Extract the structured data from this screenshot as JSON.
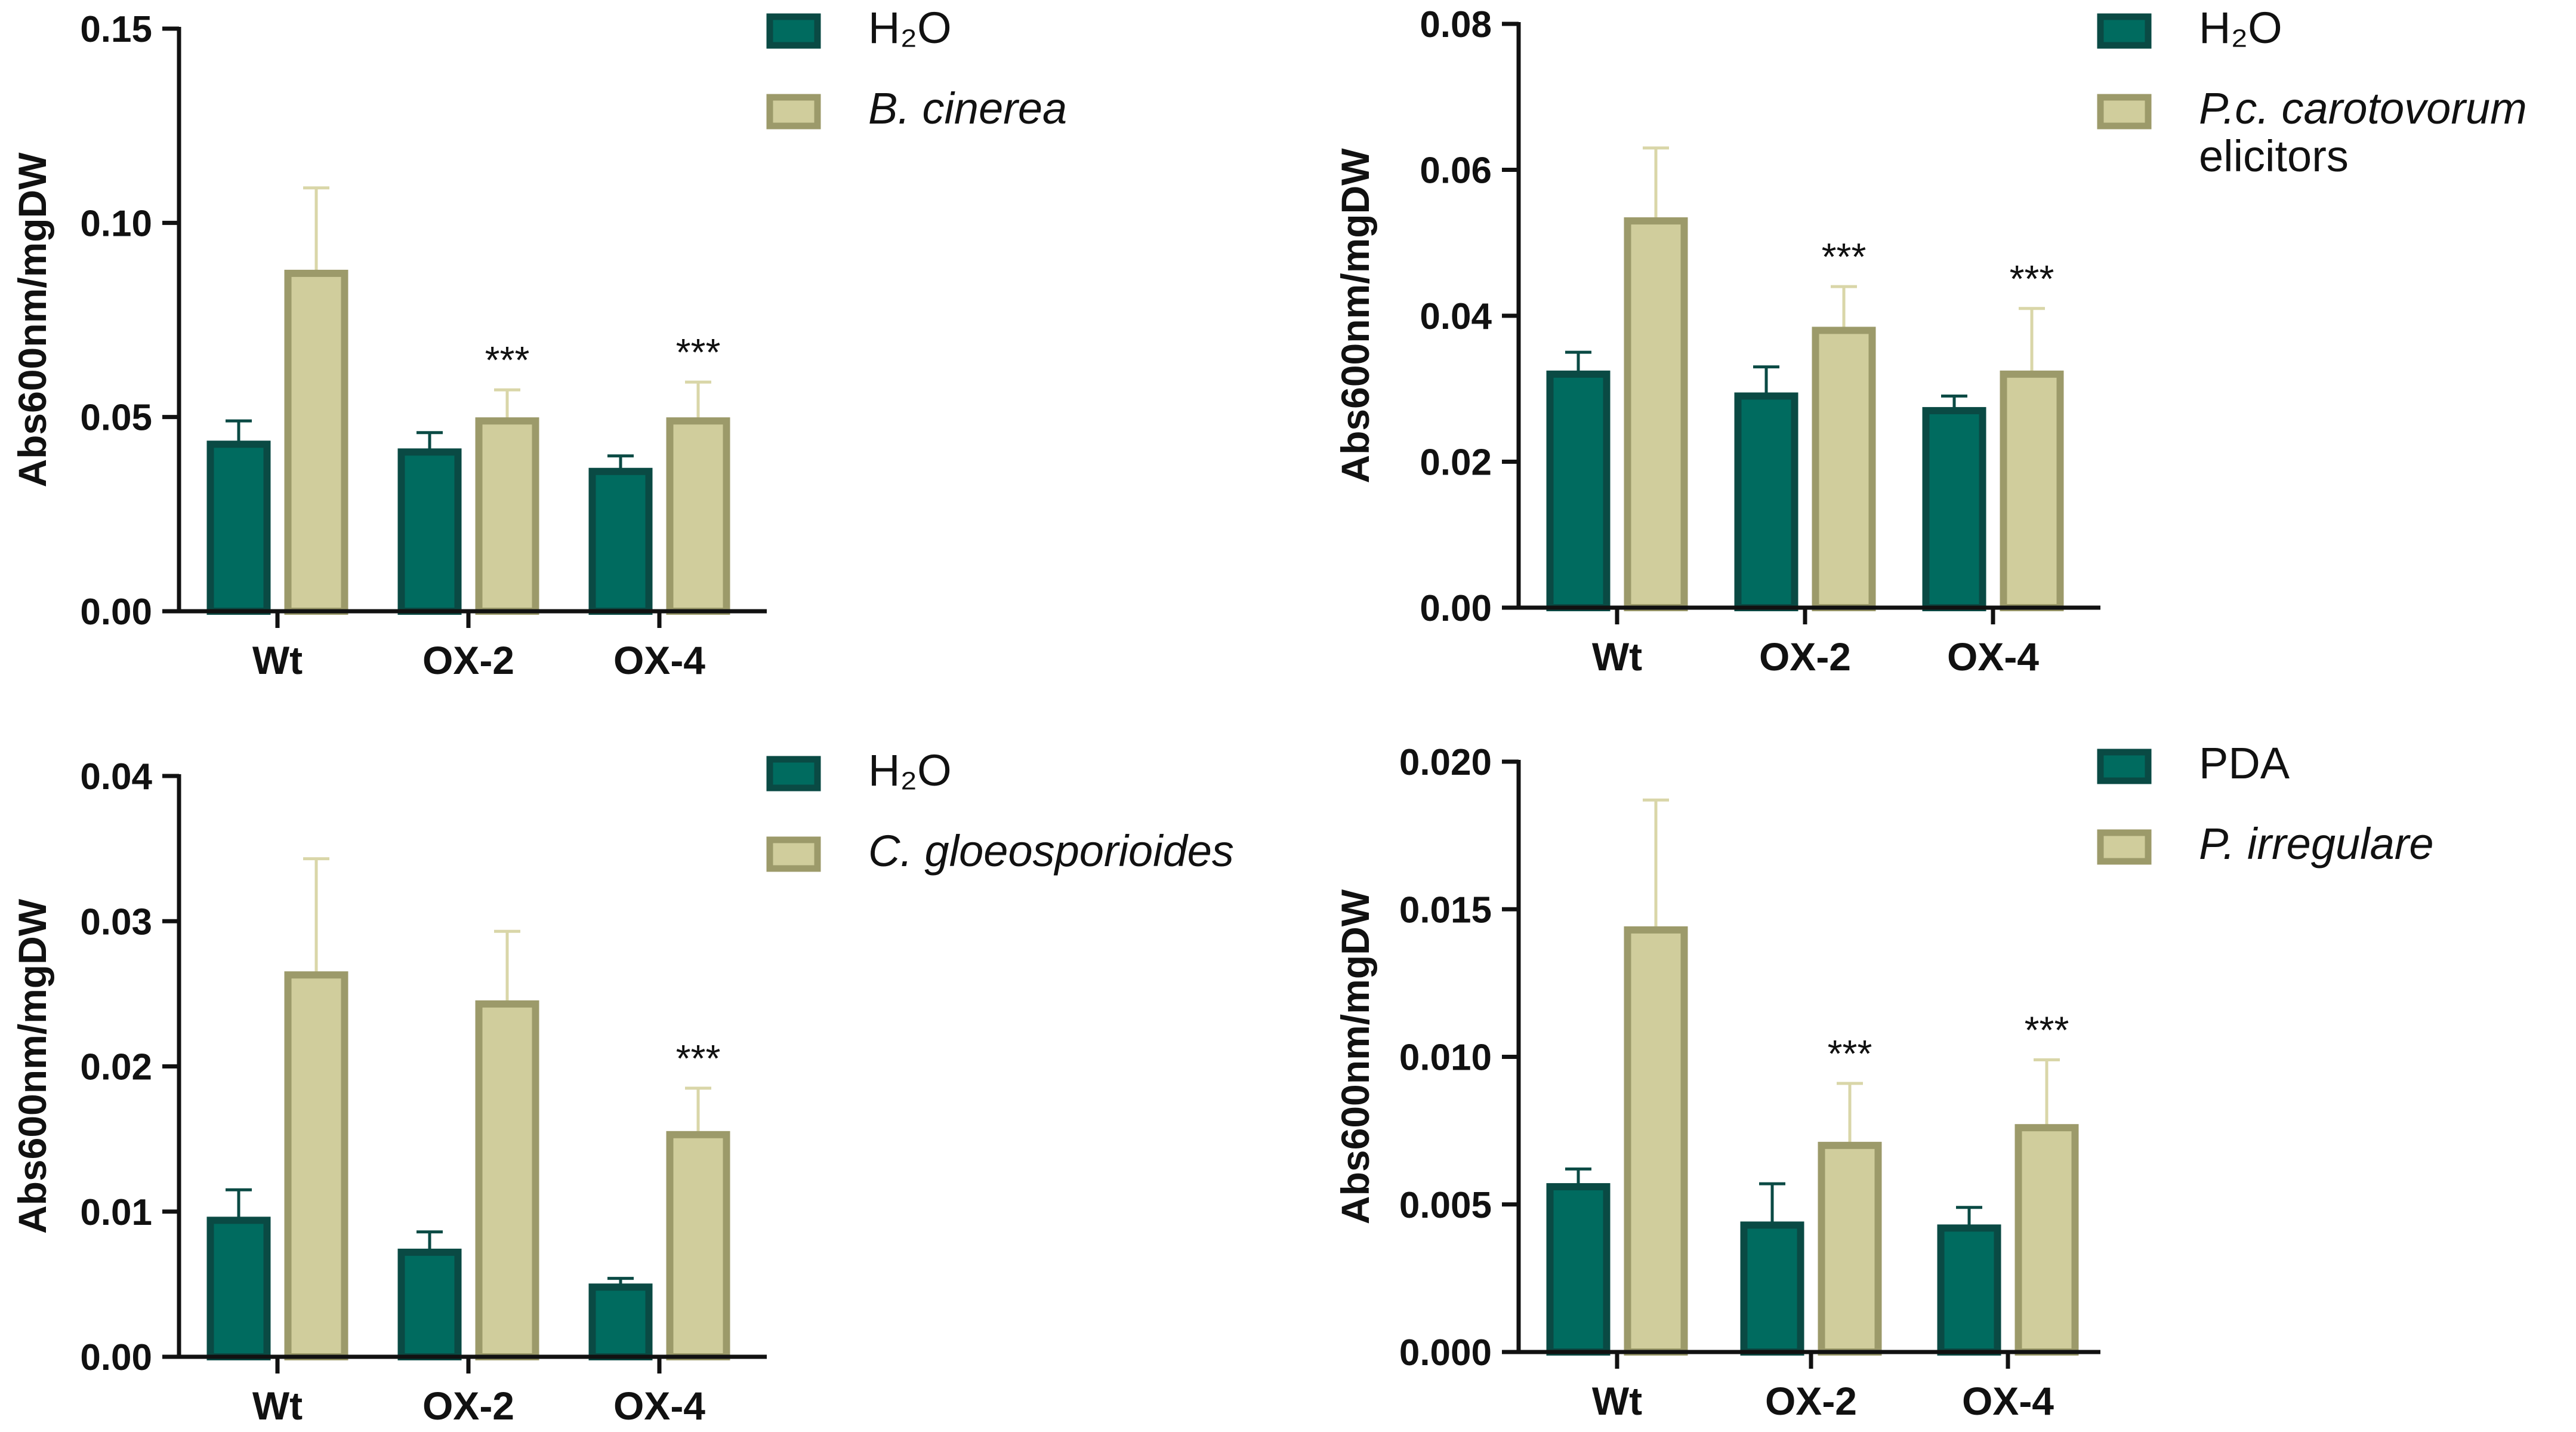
{
  "chart_data": [
    {
      "type": "bar",
      "categories": [
        "Wt",
        "OX-2",
        "OX-4"
      ],
      "ylabel": "Abs600nm/mgDW",
      "ylim": [
        0,
        0.15
      ],
      "yticks": [
        "0.00",
        "0.05",
        "0.10",
        "0.15"
      ],
      "series": [
        {
          "name": "H₂O",
          "italic": false,
          "values": [
            0.043,
            0.041,
            0.036
          ],
          "errors": [
            0.006,
            0.005,
            0.004
          ],
          "color": "#006b5f"
        },
        {
          "name": "B. cinerea",
          "italic": true,
          "values": [
            0.087,
            0.049,
            0.049
          ],
          "errors": [
            0.022,
            0.008,
            0.01
          ],
          "color": "#d0cd9c"
        }
      ],
      "annotations": [
        "",
        "***",
        "***"
      ]
    },
    {
      "type": "bar",
      "categories": [
        "Wt",
        "OX-2",
        "OX-4"
      ],
      "ylabel": "Abs600nm/mgDW",
      "ylim": [
        0,
        0.08
      ],
      "yticks": [
        "0.00",
        "0.02",
        "0.04",
        "0.06",
        "0.08"
      ],
      "series": [
        {
          "name": "H₂O",
          "italic": false,
          "values": [
            0.032,
            0.029,
            0.027
          ],
          "errors": [
            0.003,
            0.004,
            0.002
          ],
          "color": "#006b5f"
        },
        {
          "name": "P.c. carotovorum",
          "name2": "elicitors",
          "italic": true,
          "values": [
            0.053,
            0.038,
            0.032
          ],
          "errors": [
            0.01,
            0.006,
            0.009
          ],
          "color": "#d0cd9c"
        }
      ],
      "annotations": [
        "",
        "***",
        "***"
      ]
    },
    {
      "type": "bar",
      "categories": [
        "Wt",
        "OX-2",
        "OX-4"
      ],
      "ylabel": "Abs600nm/mgDW",
      "ylim": [
        0,
        0.04
      ],
      "yticks": [
        "0.00",
        "0.01",
        "0.02",
        "0.03",
        "0.04"
      ],
      "series": [
        {
          "name": "H₂O",
          "italic": false,
          "values": [
            0.0094,
            0.0072,
            0.0048
          ],
          "errors": [
            0.0021,
            0.0014,
            0.0006
          ],
          "color": "#006b5f"
        },
        {
          "name": "C. gloeosporioides",
          "italic": true,
          "values": [
            0.0263,
            0.0243,
            0.0153
          ],
          "errors": [
            0.008,
            0.005,
            0.0032
          ],
          "color": "#d0cd9c"
        }
      ],
      "annotations": [
        "",
        "",
        "***"
      ]
    },
    {
      "type": "bar",
      "categories": [
        "Wt",
        "OX-2",
        "OX-4"
      ],
      "ylabel": "Abs600nm/mgDW",
      "ylim": [
        0,
        0.02
      ],
      "yticks": [
        "0.000",
        "0.005",
        "0.010",
        "0.015",
        "0.020"
      ],
      "series": [
        {
          "name": "PDA",
          "italic": false,
          "values": [
            0.0056,
            0.0043,
            0.0042
          ],
          "errors": [
            0.0006,
            0.0014,
            0.0007
          ],
          "color": "#006b5f"
        },
        {
          "name": "P. irregulare",
          "italic": true,
          "values": [
            0.0143,
            0.007,
            0.0076
          ],
          "errors": [
            0.0044,
            0.0021,
            0.0023
          ],
          "color": "#d0cd9c"
        }
      ],
      "annotations": [
        "",
        "***",
        "***"
      ]
    }
  ]
}
